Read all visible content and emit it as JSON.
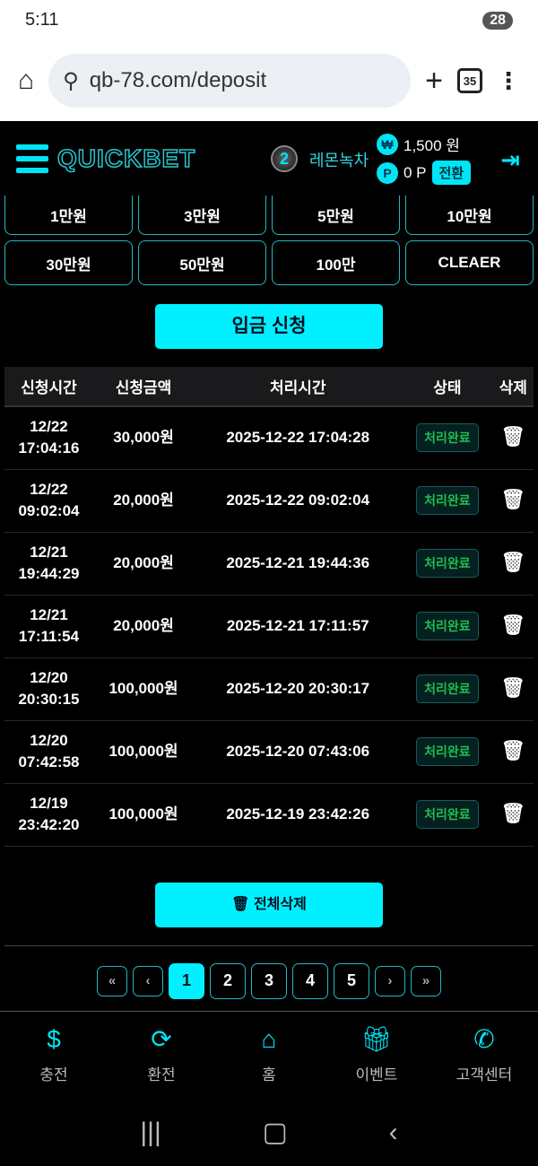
{
  "status": {
    "time": "5:11",
    "battery": "28"
  },
  "browser": {
    "url": "qb-78.com/deposit",
    "tab_count": "35"
  },
  "header": {
    "logo": "QUICKBET",
    "level": "2",
    "nickname": "레몬녹차",
    "balance": "1,500 원",
    "points": "0 P",
    "convert": "전환",
    "won_icon": "₩",
    "point_icon": "P"
  },
  "amounts": [
    "1만원",
    "3만원",
    "5만원",
    "10만원",
    "30만원",
    "50만원",
    "100만",
    "CLEAER"
  ],
  "deposit_button": "입금 신청",
  "table": {
    "headers": [
      "신청시간",
      "신청금액",
      "처리시간",
      "상태",
      "삭제"
    ],
    "rows": [
      {
        "date": "12/22",
        "time": "17:04:16",
        "amount": "30,000원",
        "processed": "2025-12-22 17:04:28",
        "status": "처리완료"
      },
      {
        "date": "12/22",
        "time": "09:02:04",
        "amount": "20,000원",
        "processed": "2025-12-22 09:02:04",
        "status": "처리완료"
      },
      {
        "date": "12/21",
        "time": "19:44:29",
        "amount": "20,000원",
        "processed": "2025-12-21 19:44:36",
        "status": "처리완료"
      },
      {
        "date": "12/21",
        "time": "17:11:54",
        "amount": "20,000원",
        "processed": "2025-12-21 17:11:57",
        "status": "처리완료"
      },
      {
        "date": "12/20",
        "time": "20:30:15",
        "amount": "100,000원",
        "processed": "2025-12-20 20:30:17",
        "status": "처리완료"
      },
      {
        "date": "12/20",
        "time": "07:42:58",
        "amount": "100,000원",
        "processed": "2025-12-20 07:43:06",
        "status": "처리완료"
      },
      {
        "date": "12/19",
        "time": "23:42:20",
        "amount": "100,000원",
        "processed": "2025-12-19 23:42:26",
        "status": "처리완료"
      }
    ]
  },
  "delete_all": "전체삭제",
  "pagination": {
    "first": "«",
    "prev": "‹",
    "pages": [
      "1",
      "2",
      "3",
      "4",
      "5"
    ],
    "current": "1",
    "next": "›",
    "last": "»"
  },
  "nav": [
    {
      "label": "충전",
      "icon": "dollar-icon"
    },
    {
      "label": "환전",
      "icon": "exchange-icon"
    },
    {
      "label": "홈",
      "icon": "home-icon"
    },
    {
      "label": "이벤트",
      "icon": "gift-icon"
    },
    {
      "label": "고객센터",
      "icon": "phone-icon"
    }
  ],
  "colors": {
    "accent": "#00f0ff",
    "status_green": "#1fbf4f"
  }
}
